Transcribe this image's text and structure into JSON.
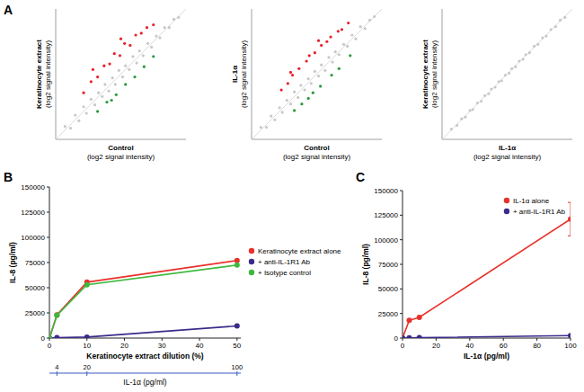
{
  "chart_data": [
    {
      "type": "scatter",
      "panel_label": "A",
      "x_label": [
        "Control",
        "(log2 signal intensity)"
      ],
      "y_label": [
        "Keratinocyte extract",
        "(log2 signal intensity)"
      ],
      "xlim": [
        2,
        16
      ],
      "ylim": [
        2,
        16
      ],
      "tick_labels": false,
      "grid": false,
      "series": [
        {
          "color": "#c8c8c8",
          "marker": "circle",
          "x": [
            3.0,
            3.6,
            4.1,
            4.5,
            5.0,
            5.3,
            5.8,
            6.2,
            6.6,
            7.0,
            7.3,
            7.7,
            8.1,
            8.4,
            8.8,
            9.2,
            9.5,
            9.9,
            10.3,
            10.7,
            11.0,
            11.4,
            11.9,
            12.3,
            12.8,
            13.2,
            13.7,
            14.2,
            14.7,
            15.2
          ],
          "values": [
            3.4,
            3.2,
            4.6,
            4.0,
            5.5,
            4.8,
            6.3,
            5.7,
            7.0,
            6.6,
            7.9,
            7.2,
            8.6,
            7.9,
            9.4,
            8.7,
            9.9,
            9.5,
            10.9,
            10.2,
            11.5,
            11.0,
            12.3,
            11.9,
            13.1,
            12.9,
            14.0,
            14.0,
            14.9,
            15.1
          ]
        },
        {
          "color": "#e8202a",
          "marker": "circle",
          "x": [
            5.0,
            5.8,
            6.5,
            7.2,
            7.8,
            8.3,
            8.9,
            9.4,
            10.0,
            10.6,
            11.2,
            11.8,
            12.5,
            6.0,
            9.0
          ],
          "values": [
            7.0,
            8.2,
            8.7,
            9.9,
            10.1,
            11.2,
            11.0,
            12.3,
            12.1,
            13.2,
            13.4,
            14.0,
            14.3,
            9.5,
            12.8
          ]
        },
        {
          "color": "#2a9a3a",
          "marker": "circle",
          "x": [
            6.5,
            7.5,
            8.5,
            9.5,
            10.5,
            11.5,
            8.0,
            12.5
          ],
          "values": [
            5.0,
            6.0,
            6.8,
            7.9,
            8.7,
            9.8,
            6.2,
            10.9
          ]
        }
      ]
    },
    {
      "type": "scatter",
      "x_label": [
        "Control",
        "(log2 signal intensity)"
      ],
      "y_label": [
        "IL-1α",
        "(log2 signal intensity)"
      ],
      "xlim": [
        2,
        16
      ],
      "ylim": [
        2,
        16
      ],
      "tick_labels": false,
      "grid": false,
      "series": [
        {
          "color": "#c8c8c8",
          "marker": "circle",
          "x": [
            3.0,
            3.6,
            4.1,
            4.5,
            5.0,
            5.3,
            5.8,
            6.2,
            6.6,
            7.0,
            7.3,
            7.7,
            8.1,
            8.4,
            8.8,
            9.2,
            9.5,
            9.9,
            10.3,
            10.7,
            11.0,
            11.4,
            11.9,
            12.3,
            12.8,
            13.2,
            13.7,
            14.2,
            14.7,
            15.2
          ],
          "values": [
            3.3,
            3.3,
            4.5,
            4.1,
            5.4,
            4.9,
            6.2,
            5.8,
            7.1,
            6.5,
            7.8,
            7.3,
            8.5,
            8.0,
            9.3,
            8.8,
            10.0,
            9.4,
            10.8,
            10.3,
            11.4,
            11.1,
            12.2,
            12.0,
            13.2,
            12.8,
            14.1,
            13.9,
            14.8,
            15.2
          ]
        },
        {
          "color": "#e8202a",
          "marker": "circle",
          "x": [
            5.2,
            5.9,
            6.4,
            7.1,
            7.9,
            8.2,
            8.8,
            9.5,
            10.1,
            10.5,
            11.3,
            11.7,
            12.4,
            6.2,
            9.2
          ],
          "values": [
            7.3,
            8.0,
            8.9,
            9.6,
            10.4,
            11.0,
            11.3,
            12.1,
            12.5,
            13.0,
            13.6,
            13.8,
            14.5,
            9.2,
            12.6
          ]
        },
        {
          "color": "#2a9a3a",
          "marker": "circle",
          "x": [
            6.6,
            7.4,
            8.6,
            9.4,
            10.6,
            11.4,
            8.1,
            12.6
          ],
          "values": [
            5.1,
            5.8,
            7.0,
            7.7,
            8.9,
            9.6,
            6.4,
            11.0
          ]
        }
      ]
    },
    {
      "type": "scatter",
      "x_label": [
        "IL-1α",
        "(log2 signal intensity)"
      ],
      "y_label": [
        "Keratinocyte extract",
        "(log2 signal intensity)"
      ],
      "xlim": [
        2,
        16
      ],
      "ylim": [
        2,
        16
      ],
      "tick_labels": false,
      "grid": false,
      "series": [
        {
          "color": "#c8c8c8",
          "marker": "circle",
          "x": [
            3.0,
            3.6,
            4.1,
            4.5,
            5.0,
            5.3,
            5.8,
            6.2,
            6.6,
            7.0,
            7.3,
            7.7,
            8.1,
            8.4,
            8.8,
            9.2,
            9.5,
            9.9,
            10.3,
            10.7,
            11.0,
            11.4,
            11.9,
            12.3,
            12.8,
            13.2,
            13.7,
            14.2,
            14.7,
            15.2
          ],
          "values": [
            3.1,
            3.5,
            4.2,
            4.4,
            5.1,
            5.2,
            5.9,
            6.1,
            6.7,
            6.9,
            7.4,
            7.6,
            8.2,
            8.3,
            8.9,
            9.1,
            9.6,
            9.8,
            10.4,
            10.6,
            11.1,
            11.3,
            12.0,
            12.2,
            12.9,
            13.1,
            13.8,
            14.1,
            14.8,
            15.1
          ]
        }
      ]
    },
    {
      "type": "line",
      "panel_label": "B",
      "x_label": "Keratinocyte extract dilution (%)",
      "y_label": "IL-8 (pg/ml)",
      "x": [
        0,
        2,
        10,
        50
      ],
      "xlim": [
        0,
        51
      ],
      "xticks": [
        0,
        10,
        20,
        30,
        40,
        50
      ],
      "ylim": [
        0,
        150000
      ],
      "yticks": [
        0,
        25000,
        50000,
        75000,
        100000,
        125000,
        150000
      ],
      "x2_label": "IL-1α (pg/ml)",
      "x2lim": [
        0,
        102
      ],
      "x2ticks": [
        4,
        20,
        100
      ],
      "grid": false,
      "legend": "right",
      "series": [
        {
          "name": "Keratinocyte extract alone",
          "color": "#e8312a",
          "marker": "circle",
          "line_style": "solid",
          "values": [
            0,
            23000,
            55500,
            77000
          ]
        },
        {
          "name": "+ anti-IL-1R1 Ab",
          "color": "#3b2a8a",
          "marker": "circle",
          "line_style": "solid",
          "values": [
            0,
            500,
            1000,
            12000
          ]
        },
        {
          "name": "+ Isotype control",
          "color": "#3cb83c",
          "marker": "circle",
          "line_style": "solid",
          "values": [
            0,
            22500,
            53000,
            72500
          ]
        }
      ]
    },
    {
      "type": "line",
      "panel_label": "C",
      "x_label": "IL-1α (pg/ml)",
      "y_label": "IL-8 (pg/ml)",
      "x": [
        0,
        4,
        10,
        100
      ],
      "xlim": [
        0,
        100
      ],
      "xticks": [
        0,
        20,
        40,
        60,
        80,
        100
      ],
      "ylim": [
        0,
        150000
      ],
      "yticks": [
        0,
        25000,
        50000,
        75000,
        100000,
        125000,
        150000
      ],
      "grid": false,
      "legend": "top-right",
      "series": [
        {
          "name": "IL-1α  alone",
          "color": "#e8312a",
          "marker": "circle",
          "line_style": "solid",
          "values": [
            0,
            18000,
            21000,
            121000
          ],
          "errors": [
            null,
            null,
            null,
            17000
          ]
        },
        {
          "name": "+ anti-IL-1R1 Ab",
          "color": "#3b2a8a",
          "marker": "circle",
          "line_style": "solid",
          "values": [
            0,
            200,
            400,
            2500
          ]
        }
      ]
    }
  ]
}
